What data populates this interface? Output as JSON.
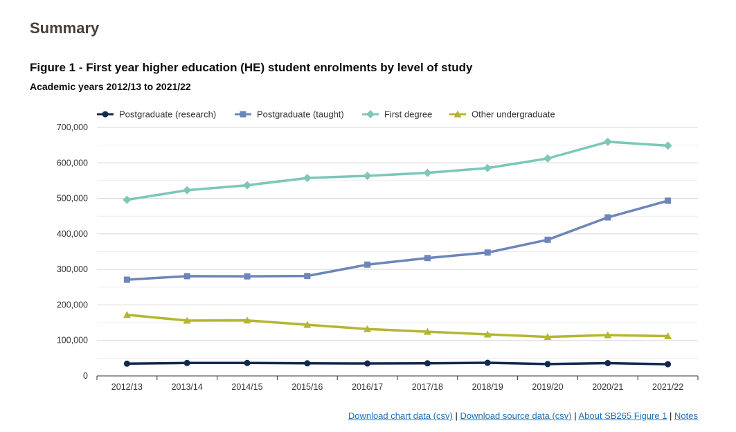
{
  "heading": "Summary",
  "figure": {
    "title": "Figure 1 - First year higher education (HE) student enrolments by level of study",
    "subtitle": "Academic years 2012/13 to 2021/22"
  },
  "chart_data": {
    "type": "line",
    "title": "Figure 1 - First year higher education (HE) student enrolments by level of study",
    "subtitle": "Academic years 2012/13 to 2021/22",
    "xlabel": "",
    "ylabel": "",
    "categories": [
      "2012/13",
      "2013/14",
      "2014/15",
      "2015/16",
      "2016/17",
      "2017/18",
      "2018/19",
      "2019/20",
      "2020/21",
      "2021/22"
    ],
    "ylim": [
      0,
      700000
    ],
    "yticks": [
      0,
      100000,
      200000,
      300000,
      400000,
      500000,
      600000,
      700000
    ],
    "ytick_labels": [
      "0",
      "100,000",
      "200,000",
      "300,000",
      "400,000",
      "500,000",
      "600,000",
      "700,000"
    ],
    "grid": true,
    "legend_position": "top",
    "series": [
      {
        "name": "Postgraduate (research)",
        "color": "#12294f",
        "marker": "circle",
        "values": [
          34500,
          36500,
          36500,
          35500,
          35000,
          35500,
          37000,
          33500,
          36000,
          33000
        ]
      },
      {
        "name": "Postgraduate (taught)",
        "color": "#6d86b8",
        "marker": "square",
        "values": [
          271000,
          281000,
          280500,
          281500,
          313500,
          332000,
          347500,
          383500,
          446500,
          493500
        ]
      },
      {
        "name": "First degree",
        "color": "#7cc7b7",
        "marker": "diamond",
        "values": [
          496000,
          523000,
          537000,
          557500,
          563500,
          572000,
          585500,
          612500,
          659500,
          648500
        ]
      },
      {
        "name": "Other undergraduate",
        "color": "#b5b531",
        "marker": "triangle",
        "values": [
          172000,
          156000,
          156500,
          144000,
          132000,
          124500,
          117000,
          110000,
          115000,
          112000
        ]
      }
    ]
  },
  "links": {
    "chart_csv": "Download chart data (csv)",
    "sep1": " | ",
    "source_csv": "Download source data (csv)",
    "sep2": " | ",
    "about": "About SB265 Figure 1",
    "sep3": " | ",
    "notes": "Notes"
  }
}
